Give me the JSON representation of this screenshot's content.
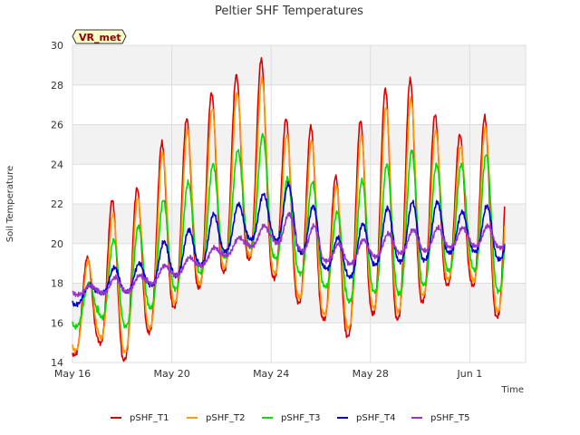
{
  "chart_data": {
    "type": "line",
    "title": "Peltier SHF Temperatures",
    "xlabel": "Time",
    "ylabel": "Soil Temperature",
    "ylim": [
      14,
      30
    ],
    "yticks": [
      14,
      16,
      18,
      20,
      22,
      24,
      26,
      28,
      30
    ],
    "x_range_days": [
      "May 16",
      "Jun 2"
    ],
    "xticks": [
      {
        "day": 0,
        "label": "May 16"
      },
      {
        "day": 4,
        "label": "May 20"
      },
      {
        "day": 8,
        "label": "May 24"
      },
      {
        "day": 12,
        "label": "May 28"
      },
      {
        "day": 16,
        "label": "Jun 1"
      }
    ],
    "grid": true,
    "legend_position": "bottom",
    "badge": "VR_met",
    "series": [
      {
        "name": "pSHF_T1",
        "color": "#dd0000",
        "mins": [
          14.3,
          15.1,
          14.0,
          15.4,
          16.7,
          17.7,
          18.5,
          19.3,
          18.4,
          17.1,
          16.3,
          15.2,
          16.5,
          16.1,
          17.0,
          17.9,
          18.1,
          16.3
        ],
        "maxs": [
          19.3,
          22.2,
          22.8,
          25.1,
          26.3,
          27.6,
          28.5,
          29.3,
          26.3,
          25.9,
          23.4,
          26.2,
          27.8,
          28.3,
          26.5,
          25.5,
          26.4
        ]
      },
      {
        "name": "pSHF_T2",
        "color": "#ff9900",
        "mins": [
          14.5,
          15.4,
          14.4,
          15.6,
          16.9,
          17.9,
          18.7,
          19.5,
          18.7,
          17.4,
          16.6,
          15.6,
          16.8,
          16.5,
          17.3,
          18.2,
          18.4,
          16.6
        ],
        "maxs": [
          19.1,
          21.5,
          22.3,
          24.6,
          25.7,
          26.8,
          27.6,
          28.3,
          25.5,
          25.2,
          22.9,
          25.4,
          26.9,
          27.3,
          25.7,
          24.9,
          25.9
        ]
      },
      {
        "name": "pSHF_T3",
        "color": "#00dd00",
        "mins": [
          15.7,
          16.4,
          15.7,
          16.6,
          17.6,
          18.4,
          19.2,
          19.9,
          19.4,
          18.6,
          18.0,
          17.0,
          17.6,
          17.4,
          17.8,
          18.6,
          18.9,
          17.6
        ],
        "maxs": [
          18.0,
          20.2,
          20.9,
          22.2,
          23.1,
          24.0,
          24.7,
          25.5,
          23.3,
          23.1,
          21.6,
          23.2,
          24.0,
          24.7,
          24.0,
          24.0,
          24.5
        ]
      },
      {
        "name": "pSHF_T4",
        "color": "#0000cc",
        "mins": [
          16.8,
          17.5,
          17.5,
          17.8,
          18.3,
          18.8,
          19.5,
          20.2,
          20.3,
          19.7,
          18.9,
          18.2,
          18.9,
          19.1,
          19.1,
          19.5,
          19.7,
          19.2
        ],
        "maxs": [
          17.9,
          18.8,
          19.0,
          20.1,
          20.7,
          21.5,
          22.0,
          22.5,
          23.0,
          21.9,
          20.3,
          21.0,
          21.8,
          22.1,
          22.1,
          21.6,
          21.9
        ]
      },
      {
        "name": "pSHF_T5",
        "color": "#9933cc",
        "mins": [
          17.4,
          17.5,
          17.5,
          17.9,
          18.3,
          18.8,
          19.3,
          19.8,
          20.1,
          19.8,
          19.2,
          18.9,
          19.3,
          19.5,
          19.6,
          19.8,
          19.9,
          19.8
        ],
        "maxs": [
          17.9,
          18.3,
          18.4,
          18.9,
          19.3,
          19.8,
          20.3,
          20.9,
          21.5,
          20.9,
          20.0,
          20.2,
          20.5,
          20.7,
          20.8,
          20.8,
          20.9
        ]
      }
    ]
  }
}
